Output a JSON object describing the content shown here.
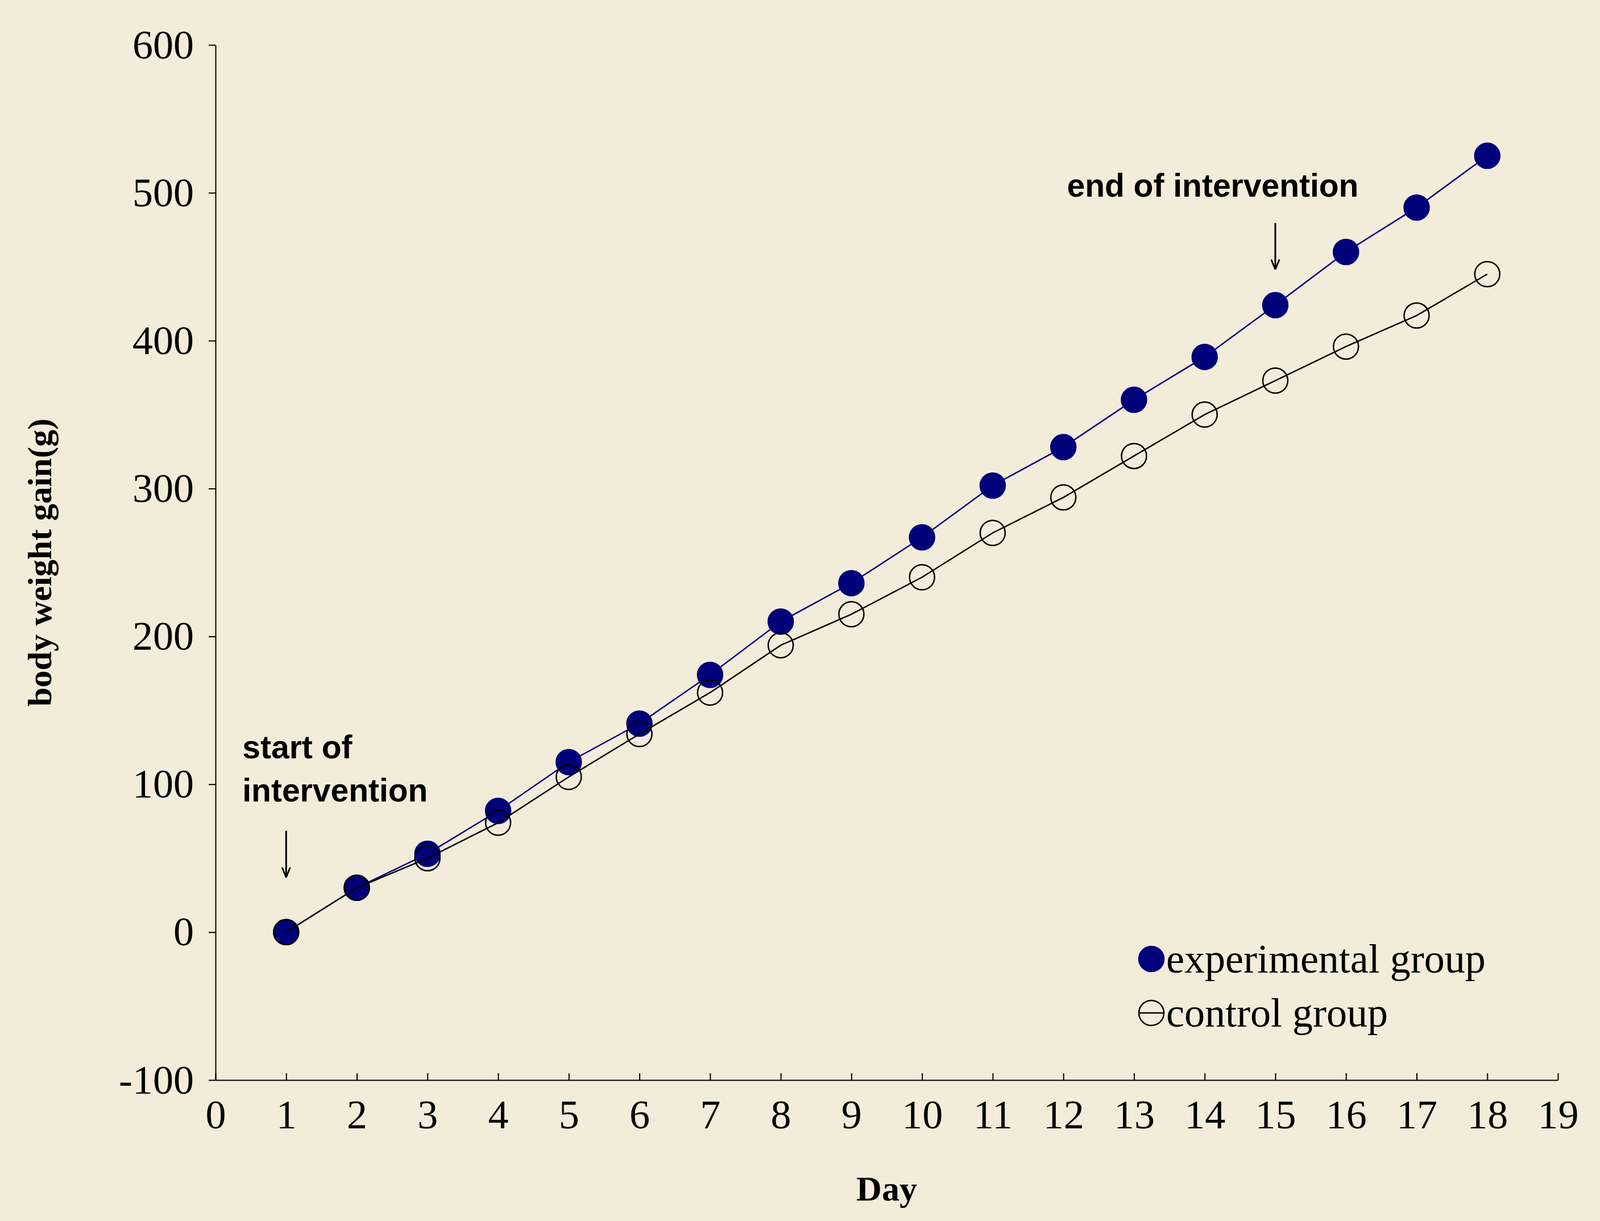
{
  "chart_data": {
    "type": "line",
    "x_label": "Day",
    "y_label": "body weight gain(g)",
    "x": [
      1,
      2,
      3,
      4,
      5,
      6,
      7,
      8,
      9,
      10,
      11,
      12,
      13,
      14,
      15,
      16,
      17,
      18
    ],
    "series": [
      {
        "name": "experimental group",
        "color": "#00007a",
        "marker": "filled-circle",
        "line_style": "solid",
        "values": [
          0,
          30,
          53,
          82,
          115,
          141,
          174,
          210,
          236,
          267,
          302,
          328,
          360,
          389,
          424,
          460,
          490,
          525
        ]
      },
      {
        "name": "control group",
        "color": "#000000",
        "marker": "open-circle",
        "line_style": "solid",
        "values": [
          0,
          30,
          50,
          74,
          105,
          134,
          162,
          194,
          215,
          240,
          270,
          294,
          322,
          350,
          373,
          396,
          417,
          445
        ]
      }
    ],
    "xlim": [
      0,
      19
    ],
    "xticks": [
      0,
      1,
      2,
      3,
      4,
      5,
      6,
      7,
      8,
      9,
      10,
      11,
      12,
      13,
      14,
      15,
      16,
      17,
      18,
      19
    ],
    "ylim": [
      -100,
      600
    ],
    "yticks": [
      -100,
      0,
      100,
      200,
      300,
      400,
      500,
      600
    ],
    "annotations": [
      {
        "text": "start of intervention",
        "x": 1,
        "y": 37
      },
      {
        "text": "end of intervention",
        "x": 15,
        "y": 448
      }
    ],
    "grid": false,
    "legend": "lower right"
  }
}
